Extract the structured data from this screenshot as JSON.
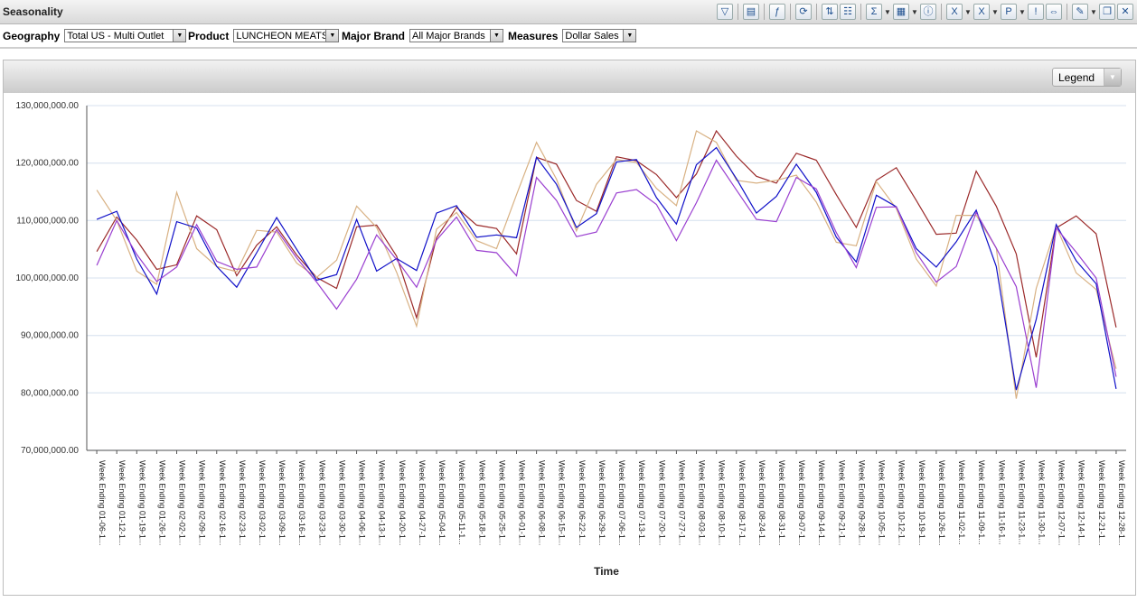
{
  "window": {
    "title": "Seasonality"
  },
  "toolbar": {
    "buttons": [
      {
        "name": "filter-icon",
        "glyph": "▽"
      },
      {
        "sep": true
      },
      {
        "name": "table-icon",
        "glyph": "▤"
      },
      {
        "sep": true
      },
      {
        "name": "formula-icon",
        "glyph": "ƒ"
      },
      {
        "sep": true
      },
      {
        "name": "refresh-icon",
        "glyph": "⟳"
      },
      {
        "sep": true
      },
      {
        "name": "sort-icon",
        "glyph": "⇅"
      },
      {
        "name": "columns-icon",
        "glyph": "☷"
      },
      {
        "sep": true
      },
      {
        "name": "sum-icon",
        "glyph": "Σ"
      },
      {
        "drop": true
      },
      {
        "name": "grid-icon",
        "glyph": "▦"
      },
      {
        "drop": true
      },
      {
        "name": "info-icon",
        "glyph": "ⓘ"
      },
      {
        "sep": true
      },
      {
        "name": "excel-export-icon",
        "glyph": "X"
      },
      {
        "drop": true
      },
      {
        "name": "excel-icon",
        "glyph": "X"
      },
      {
        "drop": true
      },
      {
        "name": "powerpoint-icon",
        "glyph": "P"
      },
      {
        "drop": true
      },
      {
        "name": "alert-icon",
        "glyph": "!"
      },
      {
        "name": "compare-icon",
        "glyph": "⇔"
      },
      {
        "sep": true
      },
      {
        "name": "edit-icon",
        "glyph": "✎"
      },
      {
        "drop": true
      },
      {
        "name": "copy-icon",
        "glyph": "❐"
      },
      {
        "name": "tools-icon",
        "glyph": "✕"
      }
    ]
  },
  "filters": [
    {
      "label": "Geography",
      "value": "Total US - Multi Outlet"
    },
    {
      "label": "Product",
      "value": "LUNCHEON MEATS"
    },
    {
      "label": "Major Brand",
      "value": "All Major Brands"
    },
    {
      "label": "Measures",
      "value": "Dollar Sales"
    }
  ],
  "legend_button": {
    "label": "Legend"
  },
  "colors": {
    "grid": "#dfe8f2",
    "axis": "#555555",
    "series": [
      "#9b2a2a",
      "#d8b183",
      "#1010c8",
      "#9a3fd0"
    ]
  },
  "chart_data": {
    "type": "line",
    "xlabel": "Time",
    "ylabel": "",
    "ylim": [
      70000000,
      130000000
    ],
    "yticks": [
      70000000,
      80000000,
      90000000,
      100000000,
      110000000,
      120000000,
      130000000
    ],
    "ytick_labels": [
      "70,000,000.00",
      "80,000,000.00",
      "90,000,000.00",
      "100,000,000.00",
      "110,000,000.00",
      "120,000,000.00",
      "130,000,000.00"
    ],
    "grid": true,
    "categories": [
      "Week Ending 01-06-1...",
      "Week Ending 01-12-1...",
      "Week Ending 01-19-1...",
      "Week Ending 01-26-1...",
      "Week Ending 02-02-1...",
      "Week Ending 02-09-1...",
      "Week Ending 02-16-1...",
      "Week Ending 02-23-1...",
      "Week Ending 03-02-1...",
      "Week Ending 03-09-1...",
      "Week Ending 03-16-1...",
      "Week Ending 03-23-1...",
      "Week Ending 03-30-1...",
      "Week Ending 04-06-1...",
      "Week Ending 04-13-1...",
      "Week Ending 04-20-1...",
      "Week Ending 04-27-1...",
      "Week Ending 05-04-1...",
      "Week Ending 05-11-1...",
      "Week Ending 05-18-1...",
      "Week Ending 05-25-1...",
      "Week Ending 06-01-1...",
      "Week Ending 06-08-1...",
      "Week Ending 06-15-1...",
      "Week Ending 06-22-1...",
      "Week Ending 06-29-1...",
      "Week Ending 07-06-1...",
      "Week Ending 07-13-1...",
      "Week Ending 07-20-1...",
      "Week Ending 07-27-1...",
      "Week Ending 08-03-1...",
      "Week Ending 08-10-1...",
      "Week Ending 08-17-1...",
      "Week Ending 08-24-1...",
      "Week Ending 08-31-1...",
      "Week Ending 09-07-1...",
      "Week Ending 09-14-1...",
      "Week Ending 09-21-1...",
      "Week Ending 09-28-1...",
      "Week Ending 10-05-1...",
      "Week Ending 10-12-1...",
      "Week Ending 10-19-1...",
      "Week Ending 10-26-1...",
      "Week Ending 11-02-1...",
      "Week Ending 11-09-1...",
      "Week Ending 11-16-1...",
      "Week Ending 11-23-1...",
      "Week Ending 11-30-1...",
      "Week Ending 12-07-1...",
      "Week Ending 12-14-1...",
      "Week Ending 12-21-1...",
      "Week Ending 12-28-1..."
    ],
    "series": [
      {
        "values": [
          104.6,
          110.6,
          106.6,
          101.5,
          102.3,
          110.8,
          108.4,
          100.4,
          105.7,
          108.9,
          104.0,
          100.1,
          98.2,
          108.9,
          109.2,
          103.8,
          93.1,
          107.0,
          112.3,
          109.2,
          108.6,
          104.2,
          121.0,
          119.8,
          113.5,
          111.6,
          121.1,
          120.4,
          118.0,
          114.0,
          118.1,
          125.6,
          121.2,
          117.7,
          116.5,
          121.7,
          120.5,
          114.5,
          108.8,
          117.0,
          119.2,
          113.5,
          107.6,
          107.8,
          118.6,
          112.5,
          104.2,
          86.2,
          108.7,
          110.8,
          107.7,
          91.4
        ]
      },
      {
        "values": [
          115.3,
          110.0,
          101.2,
          98.9,
          114.9,
          105.1,
          102.0,
          101.1,
          108.3,
          108.0,
          102.6,
          100.1,
          103.1,
          112.5,
          108.8,
          101.0,
          91.6,
          108.5,
          111.4,
          106.5,
          105.1,
          114.5,
          123.6,
          117.2,
          108.2,
          116.3,
          120.6,
          120.1,
          115.6,
          112.6,
          125.6,
          123.6,
          117.0,
          116.5,
          117.0,
          117.9,
          113.2,
          106.2,
          105.6,
          116.8,
          112.1,
          103.3,
          98.6,
          110.9,
          110.9,
          105.2,
          79.0,
          98.2,
          109.0,
          100.9,
          98.0,
          84.2
        ]
      },
      {
        "values": [
          110.2,
          111.6,
          103.3,
          97.2,
          109.8,
          108.7,
          102.0,
          98.4,
          104.4,
          110.5,
          105.0,
          99.6,
          100.6,
          110.2,
          101.2,
          103.4,
          101.3,
          111.3,
          112.6,
          107.1,
          107.5,
          107.0,
          121.0,
          116.3,
          108.8,
          111.2,
          120.2,
          120.6,
          114.0,
          109.4,
          119.7,
          122.7,
          117.3,
          111.3,
          114.2,
          119.8,
          114.9,
          107.1,
          102.8,
          114.4,
          112.4,
          105.1,
          101.9,
          106.3,
          111.8,
          102.0,
          80.5,
          92.8,
          109.3,
          103.0,
          99.0,
          80.7
        ]
      },
      {
        "values": [
          102.2,
          110.0,
          104.1,
          99.4,
          101.9,
          109.3,
          102.9,
          101.5,
          101.9,
          108.4,
          103.5,
          99.3,
          94.6,
          99.8,
          107.5,
          103.2,
          98.4,
          106.6,
          110.6,
          104.8,
          104.4,
          100.4,
          117.5,
          113.5,
          107.2,
          108.0,
          114.8,
          115.4,
          112.8,
          106.5,
          113.1,
          120.5,
          115.3,
          110.2,
          109.8,
          117.5,
          115.5,
          107.9,
          101.8,
          112.3,
          112.4,
          104.4,
          99.3,
          102.0,
          111.4,
          105.2,
          98.5,
          80.9,
          108.7,
          104.5,
          100.0,
          82.8
        ]
      }
    ]
  }
}
